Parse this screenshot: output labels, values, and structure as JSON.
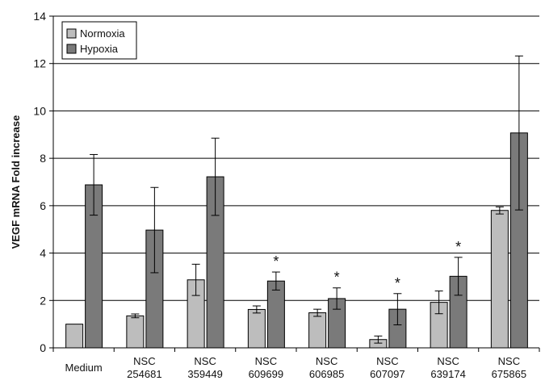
{
  "chart_data": {
    "type": "bar",
    "title": "",
    "xlabel": "",
    "ylabel": "VEGF mRNA Fold increase",
    "ylim": [
      0,
      14
    ],
    "yticks": [
      0,
      2,
      4,
      6,
      8,
      10,
      12,
      14
    ],
    "grid": true,
    "legend_position": "top-left",
    "categories": [
      "Medium",
      "NSC 254681",
      "NSC 359449",
      "NSC 609699",
      "NSC 606985",
      "NSC 607097",
      "NSC 639174",
      "NSC 675865"
    ],
    "series": [
      {
        "name": "Normoxia",
        "color": "#bdbdbd",
        "values": [
          1.0,
          1.35,
          2.87,
          1.62,
          1.48,
          0.35,
          1.92,
          5.8
        ],
        "errors": [
          0,
          0.08,
          0.66,
          0.15,
          0.15,
          0.15,
          0.48,
          0.15
        ],
        "annotations": [
          "",
          "",
          "",
          "",
          "",
          "",
          "",
          ""
        ]
      },
      {
        "name": "Hypoxia",
        "color": "#7a7a7a",
        "values": [
          6.88,
          4.97,
          7.22,
          2.82,
          2.08,
          1.63,
          3.02,
          9.07
        ],
        "errors": [
          1.28,
          1.8,
          1.63,
          0.38,
          0.45,
          0.66,
          0.8,
          3.25
        ],
        "annotations": [
          "",
          "",
          "",
          "*",
          "*",
          "*",
          "*",
          ""
        ]
      }
    ]
  }
}
